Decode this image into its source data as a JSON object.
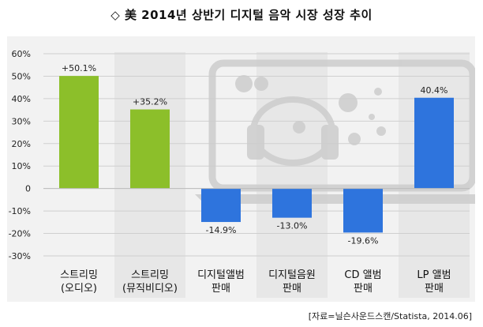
{
  "title": "◇ 美 2014년 상반기 디지털 음악 시장 성장 추이",
  "source": "[자료=닐슨사운드스캔/Statista, 2014.06]",
  "colors": {
    "green": "#8cbf2a",
    "blue": "#2e74dd",
    "band": "#e7e7e7",
    "grid": "#cfcfcf",
    "laptop": "#cdcdcd"
  },
  "chart_data": {
    "type": "bar",
    "categories": [
      [
        "스트리밍",
        "(오디오)"
      ],
      [
        "스트리밍",
        "(뮤직비디오)"
      ],
      [
        "디지털앨범",
        "판매"
      ],
      [
        "디지털음원",
        "판매"
      ],
      [
        "CD 앨범",
        "판매"
      ],
      [
        "LP 앨범",
        "판매"
      ]
    ],
    "values": [
      50.1,
      35.2,
      -14.9,
      -13.0,
      -19.6,
      40.4
    ],
    "data_labels": [
      "+50.1%",
      "+35.2%",
      "-14.9%",
      "-13.0%",
      "-19.6%",
      "40.4%"
    ],
    "bar_colors": [
      "green",
      "green",
      "blue",
      "blue",
      "blue",
      "blue"
    ],
    "ylim": [
      -30,
      60
    ],
    "yticks": [
      60,
      50,
      40,
      30,
      20,
      10,
      0,
      -10,
      -20,
      -30
    ],
    "ytick_labels": [
      "60%",
      "50%",
      "40%",
      "30%",
      "20%",
      "10%",
      "0",
      "-10%",
      "-20%",
      "-30%"
    ],
    "grid": true,
    "alternating_bands": true,
    "background_icon": "laptop-music-icon"
  }
}
